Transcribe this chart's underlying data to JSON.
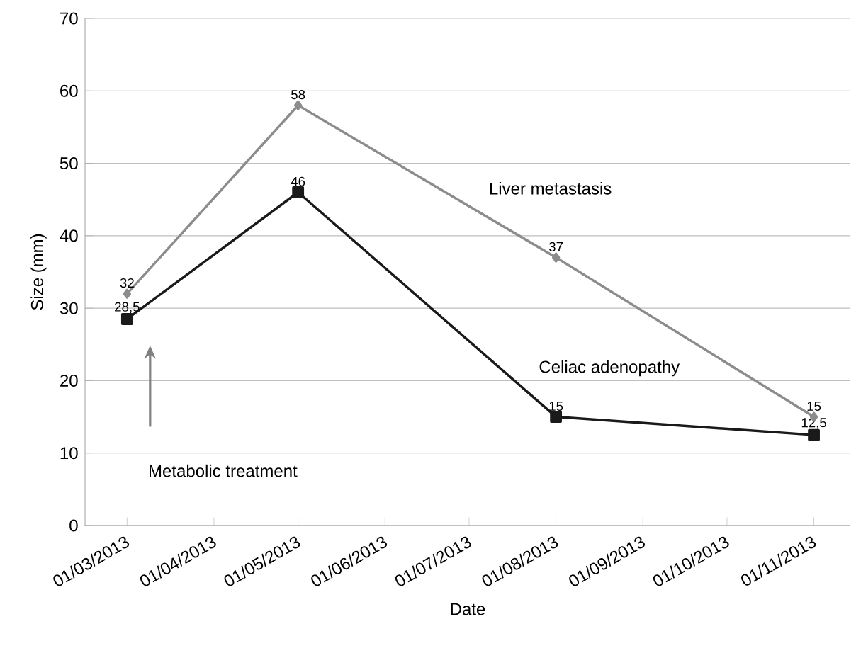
{
  "chart_data": {
    "type": "line",
    "xlabel": "Date",
    "ylabel": "Size (mm)",
    "xlim": [
      "2013-02-14",
      "2013-11-14"
    ],
    "ylim": [
      0,
      70
    ],
    "yticks": [
      0,
      10,
      20,
      30,
      40,
      50,
      60,
      70
    ],
    "xticks": [
      {
        "value": "2013-03-01",
        "label": "01/03/2013"
      },
      {
        "value": "2013-04-01",
        "label": "01/04/2013"
      },
      {
        "value": "2013-05-01",
        "label": "01/05/2013"
      },
      {
        "value": "2013-06-01",
        "label": "01/06/2013"
      },
      {
        "value": "2013-07-01",
        "label": "01/07/2013"
      },
      {
        "value": "2013-08-01",
        "label": "01/08/2013"
      },
      {
        "value": "2013-09-01",
        "label": "01/09/2013"
      },
      {
        "value": "2013-10-01",
        "label": "01/10/2013"
      },
      {
        "value": "2013-11-01",
        "label": "01/11/2013"
      }
    ],
    "x": [
      "2013-03-01",
      "2013-05-01",
      "2013-08-01",
      "2013-11-01"
    ],
    "series": [
      {
        "name": "Liver metastasis",
        "color": "#8c8c8c",
        "marker": "diamond",
        "values": [
          32,
          58,
          37,
          15
        ],
        "value_labels": [
          "32",
          "58",
          "37",
          "15"
        ]
      },
      {
        "name": "Celiac adenopathy",
        "color": "#1a1a1a",
        "marker": "square",
        "values": [
          28.5,
          46,
          15,
          12.5
        ],
        "value_labels": [
          "28,5",
          "46",
          "15",
          "12,5"
        ]
      }
    ],
    "annotations": [
      "Metabolic treatment"
    ],
    "grid": "y"
  }
}
